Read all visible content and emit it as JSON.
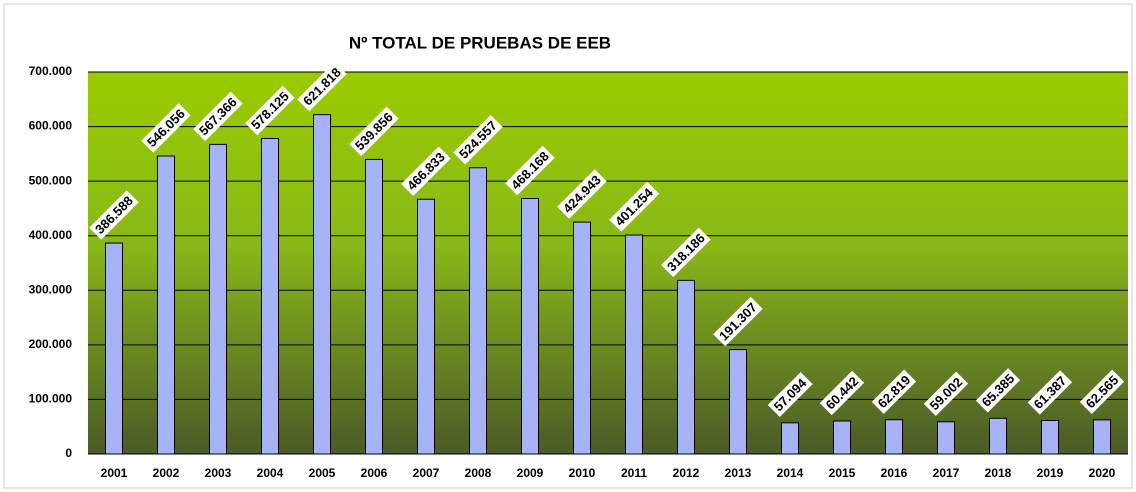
{
  "chart_data": {
    "type": "bar",
    "title": "Nº TOTAL DE PRUEBAS DE EEB",
    "categories": [
      "2001",
      "2002",
      "2003",
      "2004",
      "2005",
      "2006",
      "2007",
      "2008",
      "2009",
      "2010",
      "2011",
      "2012",
      "2013",
      "2014",
      "2015",
      "2016",
      "2017",
      "2018",
      "2019",
      "2020"
    ],
    "values": [
      386588,
      546056,
      567366,
      578125,
      621818,
      539856,
      466833,
      524557,
      468168,
      424943,
      401254,
      318186,
      191307,
      57094,
      60442,
      62819,
      59002,
      65385,
      61387,
      62565
    ],
    "value_labels": [
      "386.588",
      "546.056",
      "567.366",
      "578.125",
      "621.818",
      "539.856",
      "466.833",
      "524.557",
      "468.168",
      "424.943",
      "401.254",
      "318.186",
      "191.307",
      "57.094",
      "60.442",
      "62.819",
      "59.002",
      "65.385",
      "61.387",
      "62.565"
    ],
    "color": "#a6b4f7",
    "ylim": [
      0,
      700000
    ],
    "yticks": [
      0,
      {
        "value": 100000,
        "label": "100.000"
      },
      {
        "value": 200000,
        "label": "200.000"
      },
      {
        "value": 300000,
        "label": "300.000"
      },
      {
        "value": 400000,
        "label": "400.000"
      },
      {
        "value": 500000,
        "label": "500.000"
      },
      {
        "value": 600000,
        "label": "600.000"
      },
      {
        "value": 700000,
        "label": "700.000"
      }
    ],
    "grid": true
  }
}
